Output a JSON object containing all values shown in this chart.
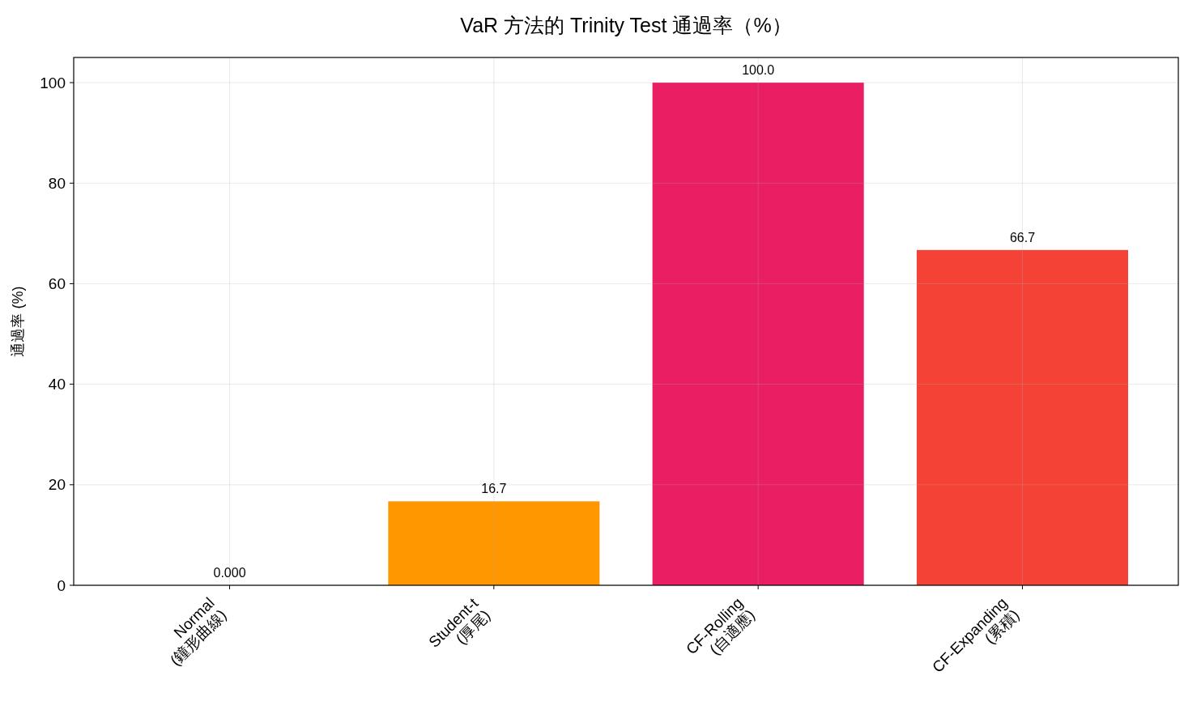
{
  "chart_data": {
    "type": "bar",
    "title": "VaR 方法的 Trinity Test 通過率（%）",
    "ylabel": "通過率 (%)",
    "categories": [
      "Normal\n(鐘形曲線)",
      "Student-t\n(厚尾)",
      "CF-Rolling\n(自適應)",
      "CF-Expanding\n(累積)"
    ],
    "values": [
      0,
      16.7,
      100,
      66.7
    ],
    "colors": [
      "#2196f3",
      "#ff9800",
      "#e91e63",
      "#f44336"
    ],
    "value_labels": [
      "0.000",
      "16.7",
      "100.0",
      "66.7"
    ],
    "ylim": [
      0,
      105
    ],
    "yticks": [
      0,
      20,
      40,
      60,
      80,
      100
    ],
    "grid": true
  }
}
